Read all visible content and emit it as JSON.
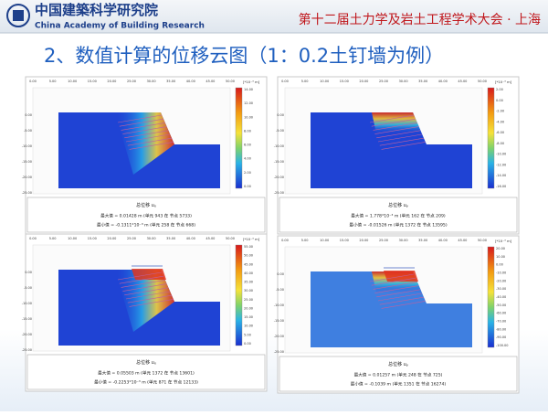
{
  "header": {
    "logo_cn": "中国建築科学研究院",
    "logo_en": "China Academy of Building Research",
    "conference": "第十二届土力学及岩土工程学术大会 · 上海"
  },
  "title": "2、数值计算的位移云图（1：0.2土钉墙为例）",
  "axis": {
    "x_ticks": [
      "0.00",
      "5.00",
      "10.00",
      "15.00",
      "20.00",
      "25.00",
      "30.00",
      "35.00",
      "40.00",
      "45.00",
      "50.00"
    ],
    "y_ticks": [
      "0.00",
      "-5.00",
      "-10.00",
      "-15.00",
      "-20.00",
      "-25.00"
    ]
  },
  "panels": [
    {
      "caption": "总位移 u",
      "caption_sub": "x",
      "unit": "[*10⁻³ m]",
      "max": "最大值 = 0.01428 m (单元 943 在 节点 5733)",
      "min": "最小值 = -0.1311*10⁻³ m (单元 258 在 节点 668)",
      "colorbar": [
        "14.00",
        "12.00",
        "10.00",
        "8.00",
        "6.00",
        "4.00",
        "2.00",
        "0.00"
      ]
    },
    {
      "caption": "总位移 u",
      "caption_sub": "y",
      "unit": "[*10⁻³ m]",
      "max": "最大值 = 1.778*10⁻³ m (单元 162 在 节点 209)",
      "min": "最小值 = -0.01526 m (单元 1372 在 节点 13595)",
      "colorbar": [
        "2.00",
        "0.00",
        "-2.00",
        "-4.00",
        "-6.00",
        "-8.00",
        "-10.00",
        "-12.00",
        "-14.00",
        "-16.00"
      ]
    },
    {
      "caption": "总位移 u",
      "caption_sub": "x",
      "unit": "[*10⁻³ m]",
      "max": "最大值 = 0.05503 m (单元 1372 在 节点 13601)",
      "min": "最小值 = -0.2253*10⁻³ m (单元 871 在 节点 12133)",
      "colorbar": [
        "55.00",
        "50.00",
        "45.00",
        "40.00",
        "35.00",
        "30.00",
        "25.00",
        "20.00",
        "15.00",
        "10.00",
        "5.00",
        "0.00"
      ]
    },
    {
      "caption": "总位移 u",
      "caption_sub": "y",
      "unit": "[*10⁻³ m]",
      "max": "最大值 = 0.01257 m (单元 248 在 节点 725)",
      "min": "最小值 = -0.1039 m (单元 1351 在 节点 16274)",
      "colorbar": [
        "20.00",
        "10.00",
        "0.00",
        "-10.00",
        "-20.00",
        "-30.00",
        "-40.00",
        "-50.00",
        "-60.00",
        "-70.00",
        "-80.00",
        "-90.00",
        "-100.00"
      ]
    }
  ]
}
